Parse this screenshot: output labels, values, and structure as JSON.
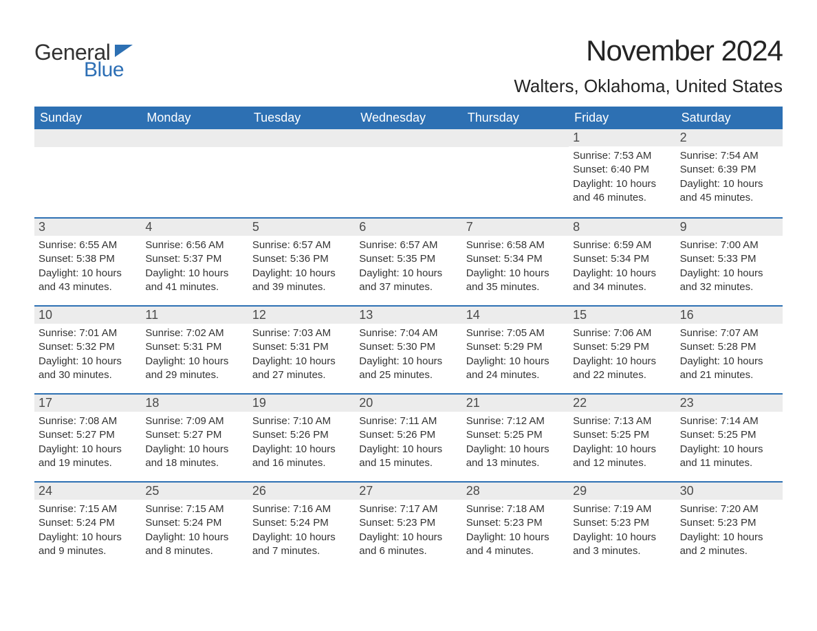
{
  "logo": {
    "word1": "General",
    "word2": "Blue",
    "flag_color": "#2d70b3"
  },
  "title": "November 2024",
  "location": "Walters, Oklahoma, United States",
  "colors": {
    "header_bg": "#2d70b3",
    "header_text": "#ffffff",
    "daynum_bg": "#ececec",
    "text": "#333333",
    "rule": "#2d70b3"
  },
  "weekdays": [
    "Sunday",
    "Monday",
    "Tuesday",
    "Wednesday",
    "Thursday",
    "Friday",
    "Saturday"
  ],
  "weeks": [
    [
      null,
      null,
      null,
      null,
      null,
      {
        "n": "1",
        "sunrise": "Sunrise: 7:53 AM",
        "sunset": "Sunset: 6:40 PM",
        "day1": "Daylight: 10 hours",
        "day2": "and 46 minutes."
      },
      {
        "n": "2",
        "sunrise": "Sunrise: 7:54 AM",
        "sunset": "Sunset: 6:39 PM",
        "day1": "Daylight: 10 hours",
        "day2": "and 45 minutes."
      }
    ],
    [
      {
        "n": "3",
        "sunrise": "Sunrise: 6:55 AM",
        "sunset": "Sunset: 5:38 PM",
        "day1": "Daylight: 10 hours",
        "day2": "and 43 minutes."
      },
      {
        "n": "4",
        "sunrise": "Sunrise: 6:56 AM",
        "sunset": "Sunset: 5:37 PM",
        "day1": "Daylight: 10 hours",
        "day2": "and 41 minutes."
      },
      {
        "n": "5",
        "sunrise": "Sunrise: 6:57 AM",
        "sunset": "Sunset: 5:36 PM",
        "day1": "Daylight: 10 hours",
        "day2": "and 39 minutes."
      },
      {
        "n": "6",
        "sunrise": "Sunrise: 6:57 AM",
        "sunset": "Sunset: 5:35 PM",
        "day1": "Daylight: 10 hours",
        "day2": "and 37 minutes."
      },
      {
        "n": "7",
        "sunrise": "Sunrise: 6:58 AM",
        "sunset": "Sunset: 5:34 PM",
        "day1": "Daylight: 10 hours",
        "day2": "and 35 minutes."
      },
      {
        "n": "8",
        "sunrise": "Sunrise: 6:59 AM",
        "sunset": "Sunset: 5:34 PM",
        "day1": "Daylight: 10 hours",
        "day2": "and 34 minutes."
      },
      {
        "n": "9",
        "sunrise": "Sunrise: 7:00 AM",
        "sunset": "Sunset: 5:33 PM",
        "day1": "Daylight: 10 hours",
        "day2": "and 32 minutes."
      }
    ],
    [
      {
        "n": "10",
        "sunrise": "Sunrise: 7:01 AM",
        "sunset": "Sunset: 5:32 PM",
        "day1": "Daylight: 10 hours",
        "day2": "and 30 minutes."
      },
      {
        "n": "11",
        "sunrise": "Sunrise: 7:02 AM",
        "sunset": "Sunset: 5:31 PM",
        "day1": "Daylight: 10 hours",
        "day2": "and 29 minutes."
      },
      {
        "n": "12",
        "sunrise": "Sunrise: 7:03 AM",
        "sunset": "Sunset: 5:31 PM",
        "day1": "Daylight: 10 hours",
        "day2": "and 27 minutes."
      },
      {
        "n": "13",
        "sunrise": "Sunrise: 7:04 AM",
        "sunset": "Sunset: 5:30 PM",
        "day1": "Daylight: 10 hours",
        "day2": "and 25 minutes."
      },
      {
        "n": "14",
        "sunrise": "Sunrise: 7:05 AM",
        "sunset": "Sunset: 5:29 PM",
        "day1": "Daylight: 10 hours",
        "day2": "and 24 minutes."
      },
      {
        "n": "15",
        "sunrise": "Sunrise: 7:06 AM",
        "sunset": "Sunset: 5:29 PM",
        "day1": "Daylight: 10 hours",
        "day2": "and 22 minutes."
      },
      {
        "n": "16",
        "sunrise": "Sunrise: 7:07 AM",
        "sunset": "Sunset: 5:28 PM",
        "day1": "Daylight: 10 hours",
        "day2": "and 21 minutes."
      }
    ],
    [
      {
        "n": "17",
        "sunrise": "Sunrise: 7:08 AM",
        "sunset": "Sunset: 5:27 PM",
        "day1": "Daylight: 10 hours",
        "day2": "and 19 minutes."
      },
      {
        "n": "18",
        "sunrise": "Sunrise: 7:09 AM",
        "sunset": "Sunset: 5:27 PM",
        "day1": "Daylight: 10 hours",
        "day2": "and 18 minutes."
      },
      {
        "n": "19",
        "sunrise": "Sunrise: 7:10 AM",
        "sunset": "Sunset: 5:26 PM",
        "day1": "Daylight: 10 hours",
        "day2": "and 16 minutes."
      },
      {
        "n": "20",
        "sunrise": "Sunrise: 7:11 AM",
        "sunset": "Sunset: 5:26 PM",
        "day1": "Daylight: 10 hours",
        "day2": "and 15 minutes."
      },
      {
        "n": "21",
        "sunrise": "Sunrise: 7:12 AM",
        "sunset": "Sunset: 5:25 PM",
        "day1": "Daylight: 10 hours",
        "day2": "and 13 minutes."
      },
      {
        "n": "22",
        "sunrise": "Sunrise: 7:13 AM",
        "sunset": "Sunset: 5:25 PM",
        "day1": "Daylight: 10 hours",
        "day2": "and 12 minutes."
      },
      {
        "n": "23",
        "sunrise": "Sunrise: 7:14 AM",
        "sunset": "Sunset: 5:25 PM",
        "day1": "Daylight: 10 hours",
        "day2": "and 11 minutes."
      }
    ],
    [
      {
        "n": "24",
        "sunrise": "Sunrise: 7:15 AM",
        "sunset": "Sunset: 5:24 PM",
        "day1": "Daylight: 10 hours",
        "day2": "and 9 minutes."
      },
      {
        "n": "25",
        "sunrise": "Sunrise: 7:15 AM",
        "sunset": "Sunset: 5:24 PM",
        "day1": "Daylight: 10 hours",
        "day2": "and 8 minutes."
      },
      {
        "n": "26",
        "sunrise": "Sunrise: 7:16 AM",
        "sunset": "Sunset: 5:24 PM",
        "day1": "Daylight: 10 hours",
        "day2": "and 7 minutes."
      },
      {
        "n": "27",
        "sunrise": "Sunrise: 7:17 AM",
        "sunset": "Sunset: 5:23 PM",
        "day1": "Daylight: 10 hours",
        "day2": "and 6 minutes."
      },
      {
        "n": "28",
        "sunrise": "Sunrise: 7:18 AM",
        "sunset": "Sunset: 5:23 PM",
        "day1": "Daylight: 10 hours",
        "day2": "and 4 minutes."
      },
      {
        "n": "29",
        "sunrise": "Sunrise: 7:19 AM",
        "sunset": "Sunset: 5:23 PM",
        "day1": "Daylight: 10 hours",
        "day2": "and 3 minutes."
      },
      {
        "n": "30",
        "sunrise": "Sunrise: 7:20 AM",
        "sunset": "Sunset: 5:23 PM",
        "day1": "Daylight: 10 hours",
        "day2": "and 2 minutes."
      }
    ]
  ]
}
